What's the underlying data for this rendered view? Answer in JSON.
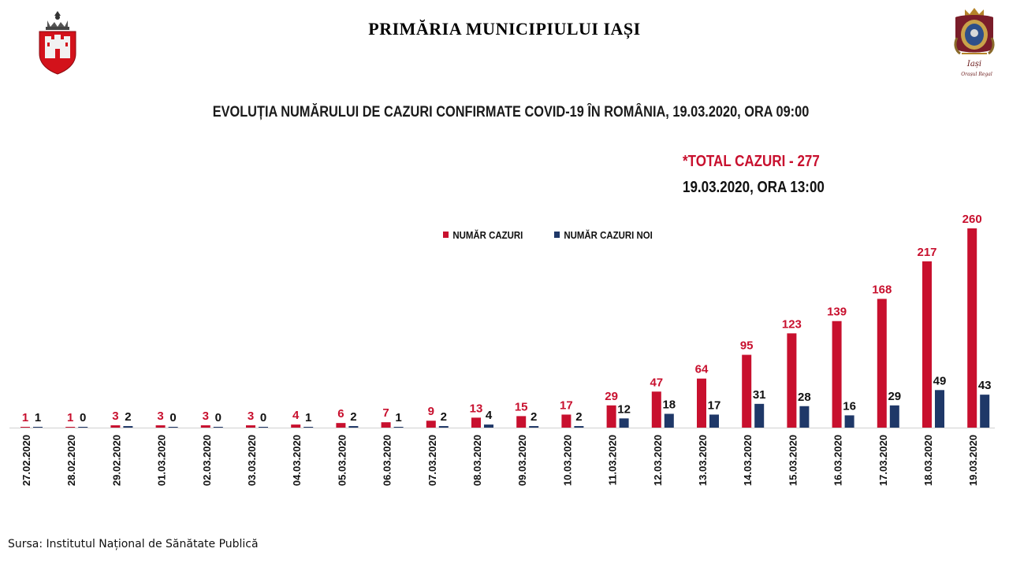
{
  "header": {
    "title": "PRIMĂRIA MUNICIPIULUI IAȘI"
  },
  "logos": {
    "left": "iasi-coat-of-arms-icon",
    "right": "iasi-royal-crest-icon",
    "right_caption": "Iași Orașul Regal"
  },
  "note": {
    "total": "*TOTAL CAZURI - 277",
    "time": "19.03.2020, ORA 13:00"
  },
  "footer": {
    "source": "Sursa: Institutul Național de Sănătate Publică"
  },
  "colors": {
    "total": "#c8102e",
    "new": "#1f3868"
  },
  "chart_data": {
    "type": "bar",
    "title": "EVOLUȚIA NUMĂRULUI DE CAZURI CONFIRMATE COVID-19 ÎN ROMÂNIA, 19.03.2020, ORA 09:00",
    "categories": [
      "27.02.2020",
      "28.02.2020",
      "29.02.2020",
      "01.03.2020",
      "02.03.2020",
      "03.03.2020",
      "04.03.2020",
      "05.03.2020",
      "06.03.2020",
      "07.03.2020",
      "08.03.2020",
      "09.03.2020",
      "10.03.2020",
      "11.03.2020",
      "12.03.2020",
      "13.03.2020",
      "14.03.2020",
      "15.03.2020",
      "16.03.2020",
      "17.03.2020",
      "18.03.2020",
      "19.03.2020"
    ],
    "series": [
      {
        "name": "NUMĂR CAZURI",
        "color": "#c8102e",
        "values": [
          1,
          1,
          3,
          3,
          3,
          3,
          4,
          6,
          7,
          9,
          13,
          15,
          17,
          29,
          47,
          64,
          95,
          123,
          139,
          168,
          217,
          260
        ]
      },
      {
        "name": "NUMĂR CAZURI NOI",
        "color": "#1f3868",
        "values": [
          1,
          0,
          2,
          0,
          0,
          0,
          1,
          2,
          1,
          2,
          4,
          2,
          2,
          12,
          18,
          17,
          31,
          28,
          16,
          29,
          49,
          43
        ]
      }
    ],
    "legend_position": "top-center",
    "grid": false,
    "ylim": [
      0,
      260
    ]
  }
}
